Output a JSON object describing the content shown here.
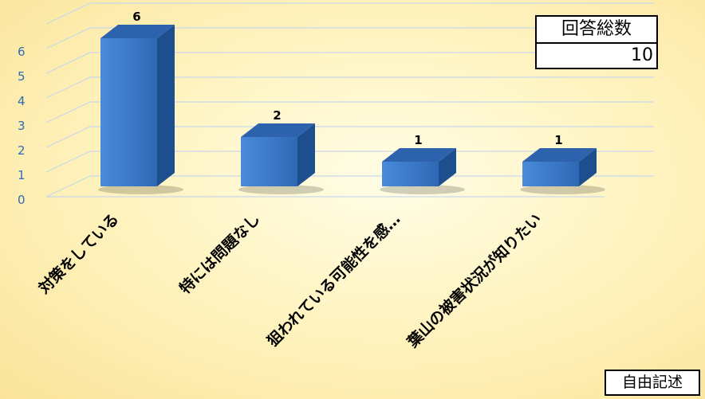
{
  "chart_data": {
    "type": "bar",
    "categories": [
      "対策をしている",
      "特には問題なし",
      "狙われている可能性を感…",
      "葉山の被害状況が知りたい"
    ],
    "values": [
      6,
      2,
      1,
      1
    ],
    "ylim": [
      0,
      6
    ],
    "yticks": [
      0,
      1,
      2,
      3,
      4,
      5,
      6
    ],
    "grid": true,
    "colors": {
      "bar_front": "#3a78c9",
      "bar_top": "#2d63ad",
      "bar_side": "#1d4f8f",
      "tick": "#2e6db3"
    }
  },
  "total_box": {
    "title": "回答総数",
    "value": "10"
  },
  "free_box": {
    "label": "自由記述"
  }
}
